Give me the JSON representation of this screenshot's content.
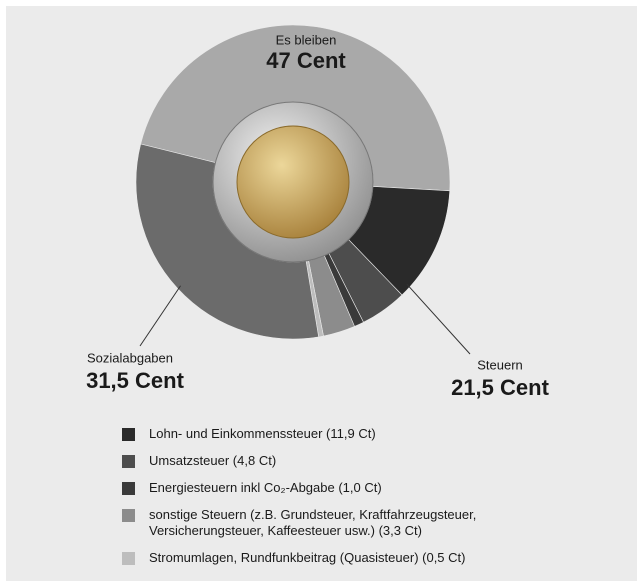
{
  "chart_data": {
    "type": "donut",
    "groups": [
      {
        "label": "Es bleiben",
        "value": 47,
        "value_label": "47 Cent",
        "color": "#a9a9a9"
      },
      {
        "label": "Steuern",
        "value": 21.5,
        "value_label": "21,5 Cent",
        "segments": [
          {
            "name": "Lohn- und Einkommenssteuer (11,9 Ct)",
            "value": 11.9,
            "color": "#2a2a2a"
          },
          {
            "name": "Umsatzsteuer (4,8 Ct)",
            "value": 4.8,
            "color": "#4d4d4d"
          },
          {
            "name": "Energiesteuern inkl Co₂-Abgabe (1,0 Ct)",
            "value": 1.0,
            "color": "#3a3a3a"
          },
          {
            "name": "sonstige Steuern (z.B. Grundsteuer, Kraftfahrzeugsteuer, Versicherungsteuer, Kaffeesteuer usw.) (3,3 Ct)",
            "value": 3.3,
            "color": "#8c8c8c"
          },
          {
            "name": "Stromumlagen, Rundfunkbeitrag (Quasisteuer) (0,5 Ct)",
            "value": 0.5,
            "color": "#bdbdbd"
          }
        ]
      },
      {
        "label": "Sozialabgaben",
        "value": 31.5,
        "value_label": "31,5 Cent",
        "color": "#6b6b6b"
      }
    ]
  }
}
